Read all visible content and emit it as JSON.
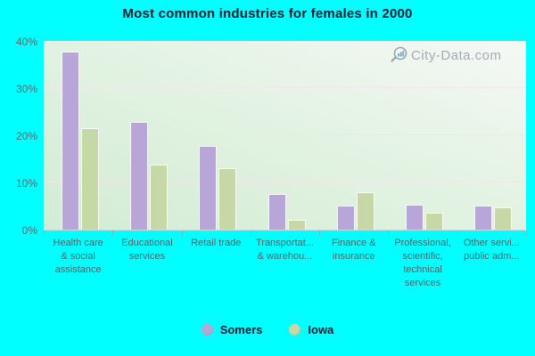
{
  "title": "Most common industries for females in 2000",
  "watermark": {
    "text": "City-Data.com"
  },
  "colors": {
    "background": "#00ffff",
    "somers_bar": "#b9a6d9",
    "iowa_bar": "#c5d8a5",
    "plot_gradient_top_right": "#f5f8f5",
    "plot_gradient_bottom_left": "#d2ecd4",
    "gridline": "#f8e0ee",
    "title_text": "#1b1b2f",
    "axis_text": "#4f6467",
    "watermark_text": "#a3abb4"
  },
  "chart_data": {
    "type": "bar",
    "title": "Most common industries for females in 2000",
    "categories": [
      "Health care & social assistance",
      "Educational services",
      "Retail trade",
      "Transportat... & warehou...",
      "Finance & insurance",
      "Professional, scientific, technical services",
      "Other servi... public adm..."
    ],
    "category_display_lines": [
      [
        "Health care",
        "& social",
        "assistance"
      ],
      [
        "Educational",
        "services"
      ],
      [
        "Retail trade"
      ],
      [
        "Transportat...",
        "& warehou..."
      ],
      [
        "Finance &",
        "insurance"
      ],
      [
        "Professional,",
        "scientific,",
        "technical",
        "services"
      ],
      [
        "Other servi...",
        "public adm..."
      ]
    ],
    "series": [
      {
        "name": "Somers",
        "color": "#b9a6d9",
        "values": [
          37.5,
          22.6,
          17.5,
          7.3,
          5.0,
          5.1,
          5.0
        ]
      },
      {
        "name": "Iowa",
        "color": "#c5d8a5",
        "values": [
          21.4,
          13.6,
          12.9,
          1.9,
          7.8,
          3.4,
          4.6
        ]
      }
    ],
    "xlabel": "",
    "ylabel": "",
    "ylim": [
      0,
      40
    ],
    "yticks": [
      0,
      10,
      20,
      30,
      40
    ],
    "ytick_labels": [
      "0%",
      "10%",
      "20%",
      "30%",
      "40%"
    ],
    "grid": true,
    "legend_position": "bottom"
  }
}
